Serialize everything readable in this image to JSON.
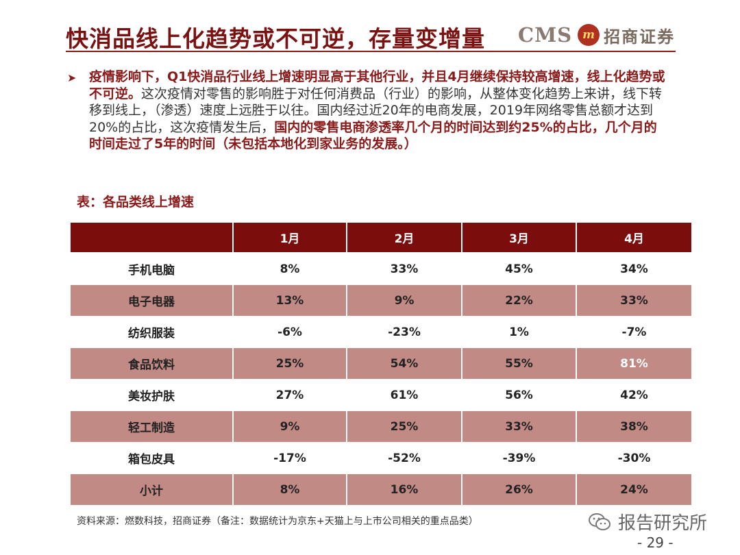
{
  "title": "快消品线上化趋势或不可逆，存量变增量",
  "logo": {
    "cms": "CMS",
    "mark": "m",
    "name": "招商证券"
  },
  "bullet": {
    "bold_1": "疫情影响下，Q1快消品行业线上增速明显高于其他行业，并且4月继续保持较高增速，线上化趋势或不可逆。",
    "normal_1": "这次疫情对零售的影响胜于对任何消费品（行业）的影响，从整体变化趋势上来讲，线下转移到线上，（渗透）速度上远胜于以往。国内经过近20年的电商发展，2019年网络零售总额才达到20%的占比，这次疫情发生后，",
    "bold_2": "国内的零售电商渗透率几个月的时间达到约25%的占比，几个月的时间走过了5年的时间（未包括本地化到家业务的发展。）"
  },
  "table_caption": "表：各品类线上增速",
  "table": {
    "headers": [
      "",
      "1月",
      "2月",
      "3月",
      "4月"
    ],
    "rows": [
      [
        "手机电脑",
        "8%",
        "33%",
        "45%",
        "34%"
      ],
      [
        "电子电器",
        "13%",
        "9%",
        "22%",
        "33%"
      ],
      [
        "纺织服装",
        "-6%",
        "-23%",
        "1%",
        "-7%"
      ],
      [
        "食品饮料",
        "25%",
        "54%",
        "55%",
        "81%"
      ],
      [
        "美妆护肤",
        "27%",
        "61%",
        "56%",
        "42%"
      ],
      [
        "轻工制造",
        "9%",
        "25%",
        "33%",
        "38%"
      ],
      [
        "箱包皮具",
        "-17%",
        "-52%",
        "-39%",
        "-30%"
      ],
      [
        "小计",
        "8%",
        "16%",
        "26%",
        "24%"
      ]
    ]
  },
  "source": "资料来源：燃数科技，招商证券（备注：数据统计为京东+天猫上与上市公司相关的重点品类）",
  "watermark": "报告研究所",
  "page_number": "- 29 -",
  "colors": {
    "accent": "#7b0d0d",
    "row_shade": "#c28a85"
  }
}
